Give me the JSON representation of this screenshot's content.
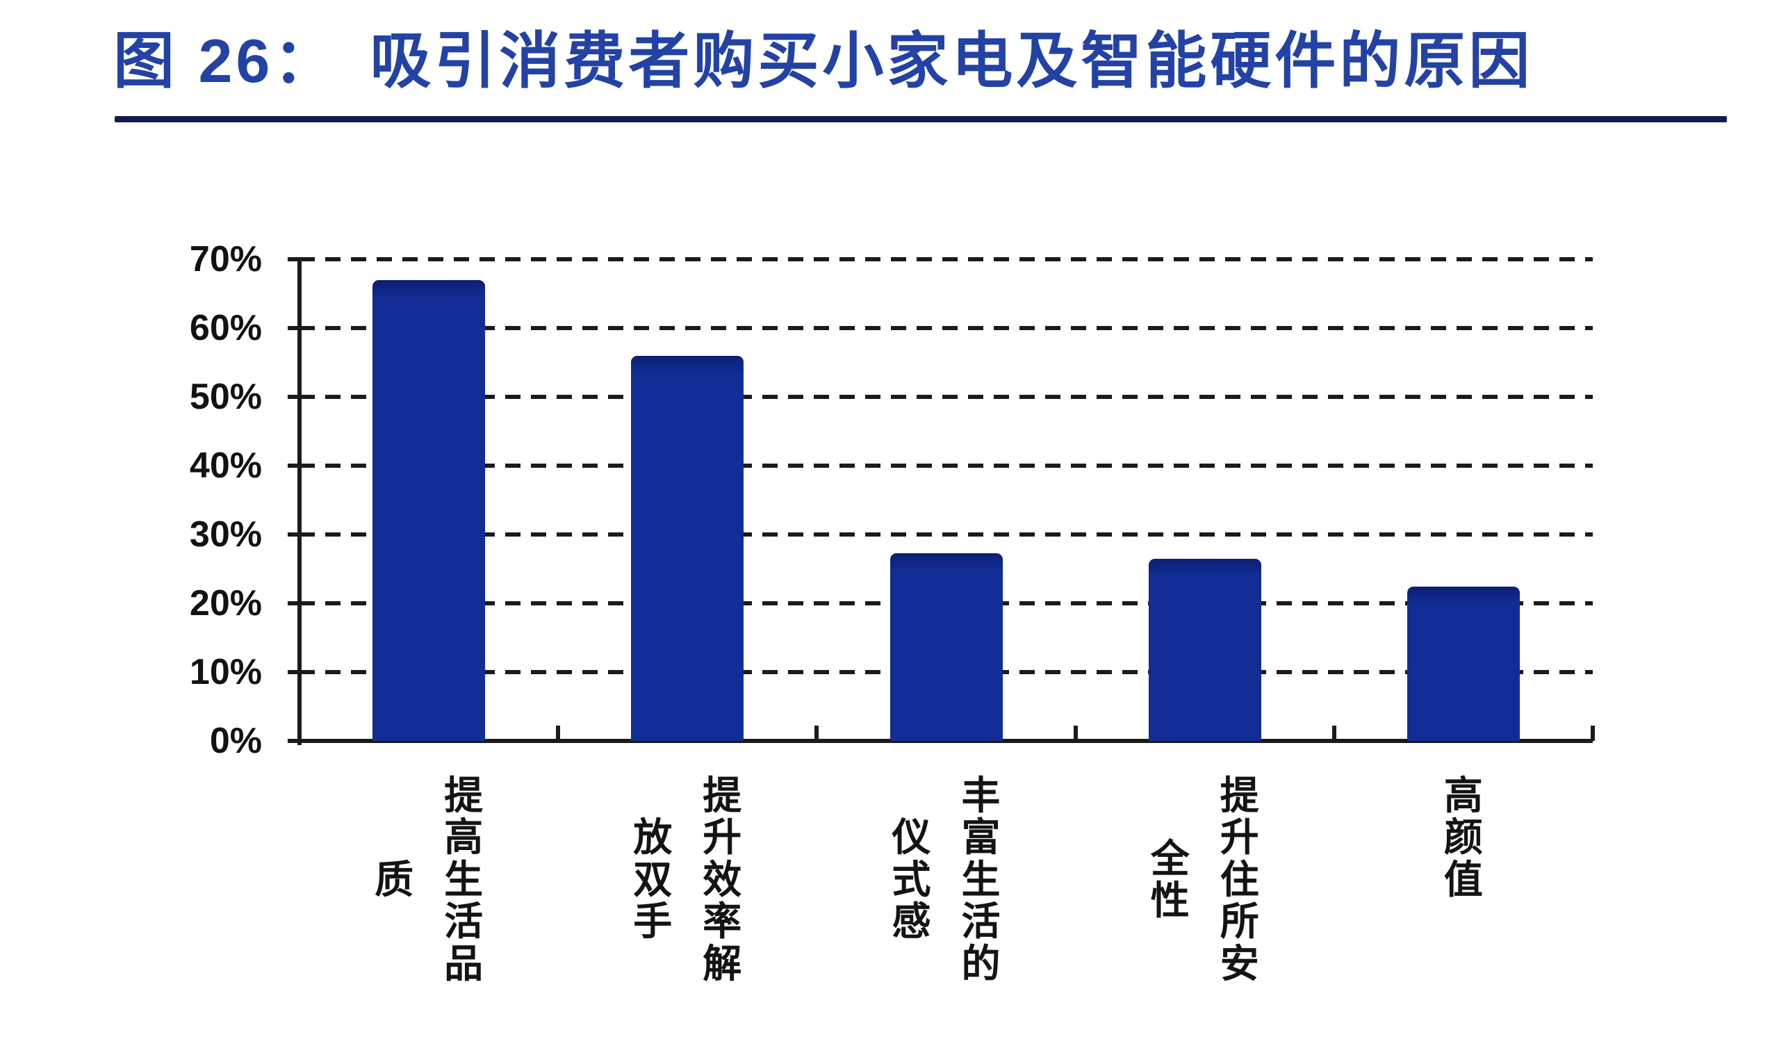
{
  "figure": {
    "label": "图 26：",
    "title": "吸引消费者购买小家电及智能硬件的原因"
  },
  "colors": {
    "title_blue": "#2342A5",
    "underline_navy": "#131B4E",
    "bar_blue": "#122D96",
    "axis_black": "#1b1b1b"
  },
  "chart_data": {
    "type": "bar",
    "title": "吸引消费者购买小家电及智能硬件的原因",
    "categories": [
      "提高生活品质",
      "提升效率解放双手",
      "丰富生活的仪式感",
      "提升住所安全性",
      "高颜值"
    ],
    "category_lines": [
      [
        "提高生活品",
        "质"
      ],
      [
        "提升效率解",
        "放双手"
      ],
      [
        "丰富生活的",
        "仪式感"
      ],
      [
        "提升住所安",
        "全性"
      ],
      [
        "高颜值"
      ]
    ],
    "values": [
      67,
      56,
      27.3,
      26.5,
      22.4
    ],
    "unit": "%",
    "xlabel": "",
    "ylabel": "",
    "ylim": [
      0,
      70
    ],
    "ytick_step": 10,
    "ytick_labels": [
      "0%",
      "10%",
      "20%",
      "30%",
      "40%",
      "50%",
      "60%",
      "70%"
    ],
    "grid": "dashed-horizontal",
    "legend": "none",
    "bar_color": "#122D96"
  }
}
